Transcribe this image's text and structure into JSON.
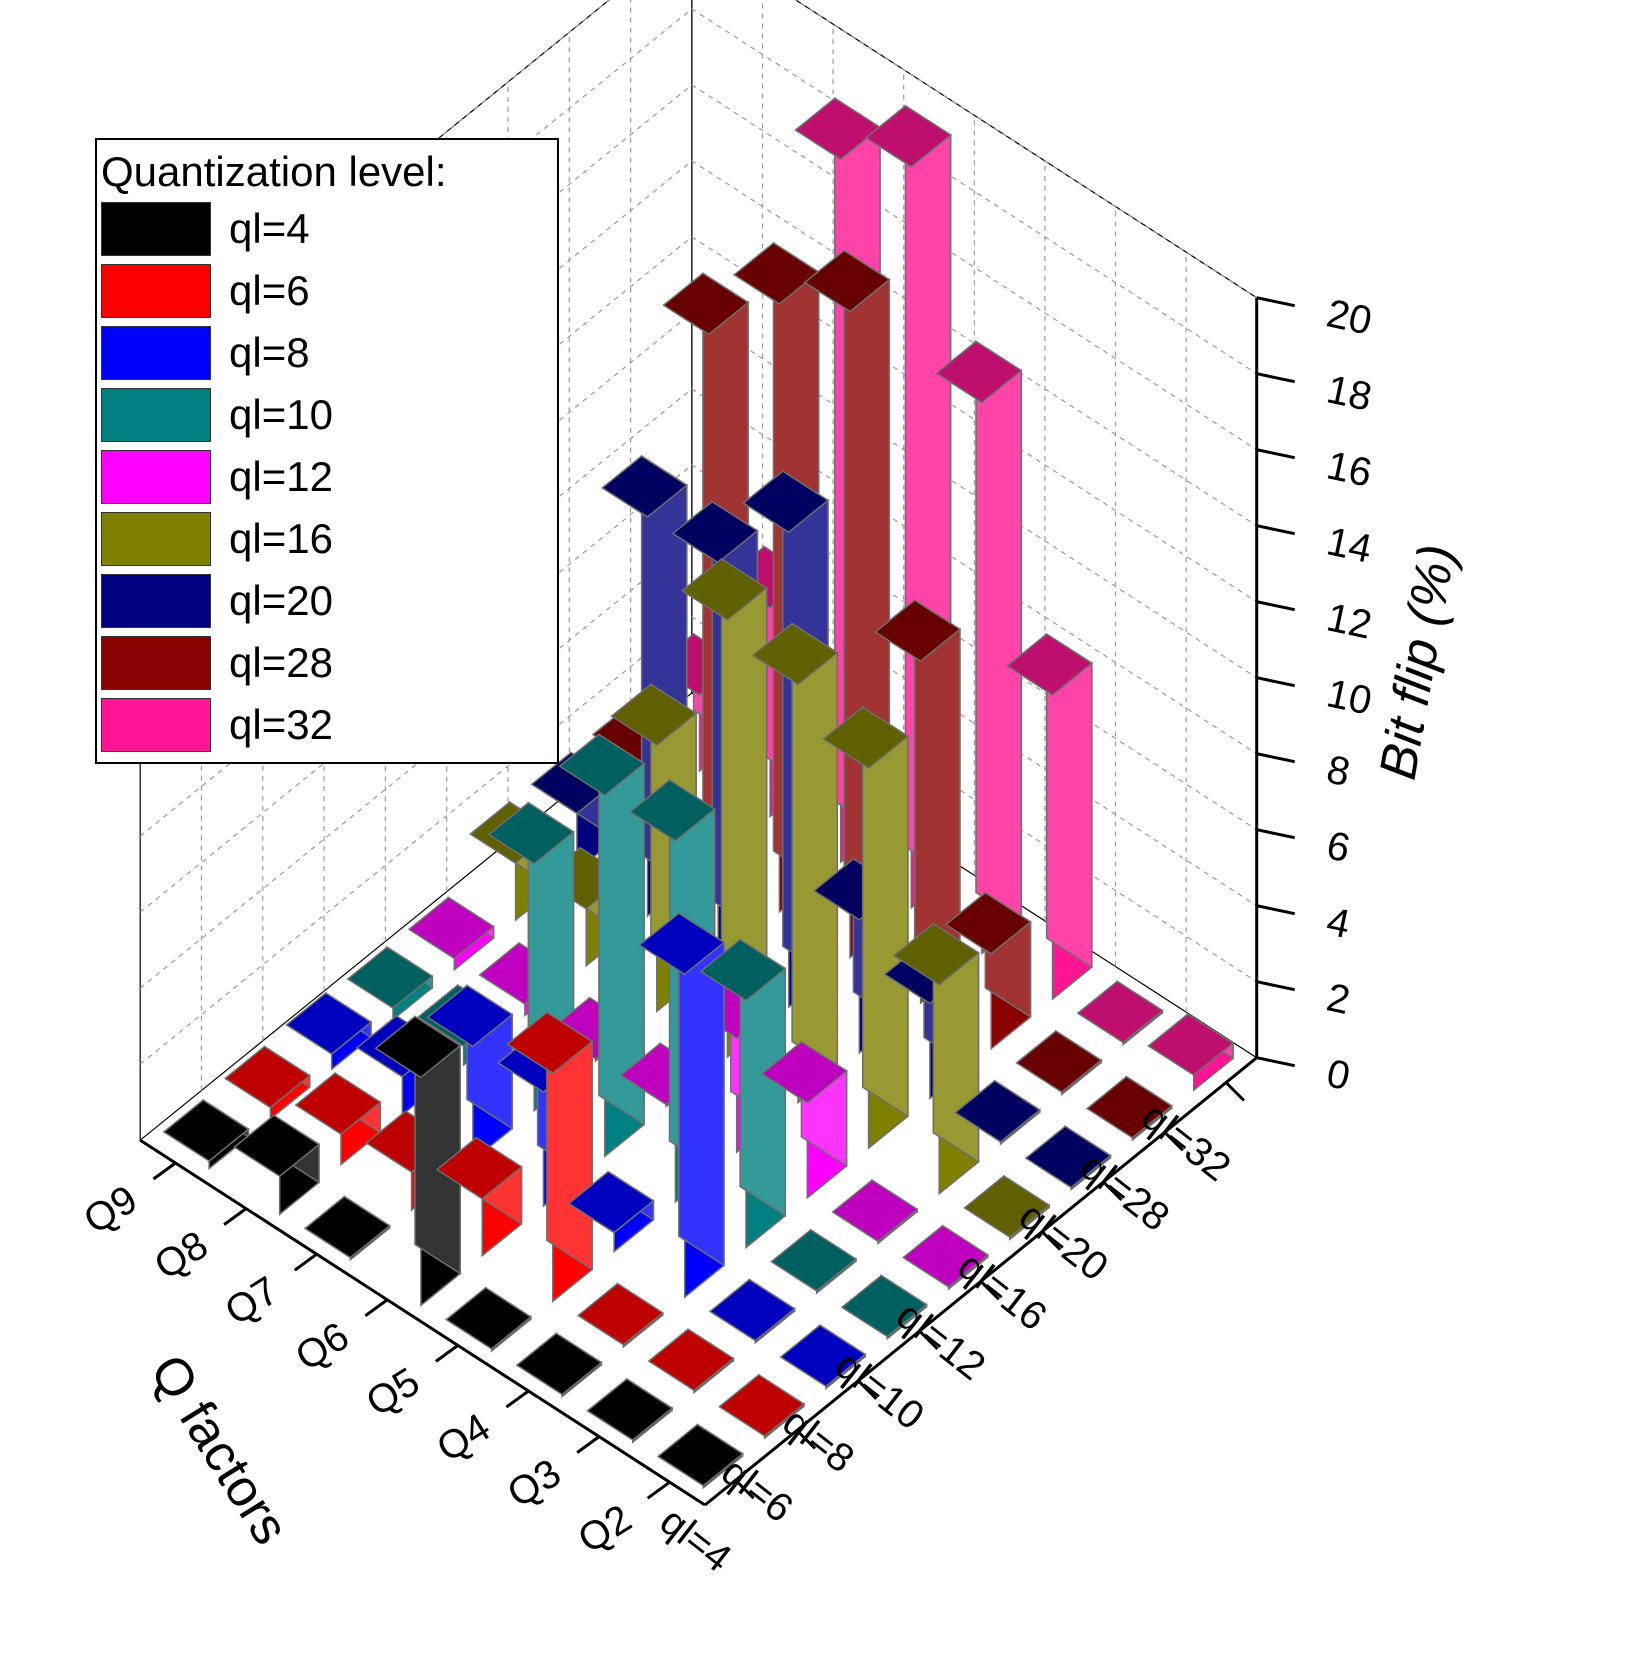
{
  "chart_data": {
    "type": "bar",
    "subtype": "3d-bar",
    "x_categories": [
      "ql=4",
      "ql=6",
      "ql=8",
      "ql=10",
      "ql=12",
      "ql=16",
      "ql=20",
      "ql=28",
      "ql=32"
    ],
    "y_categories": [
      "Q2",
      "Q3",
      "Q4",
      "Q5",
      "Q6",
      "Q7",
      "Q8",
      "Q9"
    ],
    "y_axis_title": "Q factors",
    "z_axis_title": "Bit flip (%)",
    "zlim": [
      0,
      20
    ],
    "z_ticks": [
      "0",
      "2",
      "4",
      "6",
      "8",
      "10",
      "12",
      "14",
      "16",
      "18",
      "20"
    ],
    "grid": true,
    "legend": {
      "title": "Quantization level:",
      "position": "top-left",
      "entries": [
        "ql=4",
        "ql=6",
        "ql=8",
        "ql=10",
        "ql=12",
        "ql=16",
        "ql=20",
        "ql=28",
        "ql=32"
      ]
    },
    "colors": [
      "#000000",
      "#ff0000",
      "#0000ff",
      "#008080",
      "#ff00ff",
      "#808000",
      "#000080",
      "#8b0000",
      "#ff1493"
    ],
    "series": [
      {
        "name": "ql=4",
        "values": [
          0.0,
          0.0,
          0.0,
          0.0,
          6.0,
          0.0,
          1.0,
          0.2
        ]
      },
      {
        "name": "ql=6",
        "values": [
          0.0,
          0.0,
          0.0,
          6.0,
          1.5,
          1.0,
          0.8,
          0.3
        ]
      },
      {
        "name": "ql=8",
        "values": [
          0.0,
          0.0,
          8.5,
          0.5,
          3.0,
          3.0,
          1.0,
          0.4
        ]
      },
      {
        "name": "ql=10",
        "values": [
          0.0,
          0.0,
          6.5,
          9.5,
          9.5,
          6.5,
          0.5,
          0.3
        ]
      },
      {
        "name": "ql=12",
        "values": [
          0.0,
          0.0,
          2.5,
          3.0,
          0.0,
          0.0,
          0.3,
          0.3
        ]
      },
      {
        "name": "ql=16",
        "values": [
          0.0,
          5.5,
          10.0,
          11.0,
          11.5,
          7.0,
          1.5,
          1.5
        ]
      },
      {
        "name": "ql=20",
        "values": [
          0.0,
          0.0,
          2.5,
          3.5,
          12.5,
          10.5,
          10.5,
          1.5
        ]
      },
      {
        "name": "ql=28",
        "values": [
          0.0,
          0.0,
          2.5,
          9.0,
          17.0,
          16.0,
          14.0,
          1.5
        ]
      },
      {
        "name": "ql=32",
        "values": [
          0.4,
          0.0,
          8.0,
          14.5,
          19.5,
          18.5,
          5.5,
          2.0
        ]
      }
    ]
  }
}
